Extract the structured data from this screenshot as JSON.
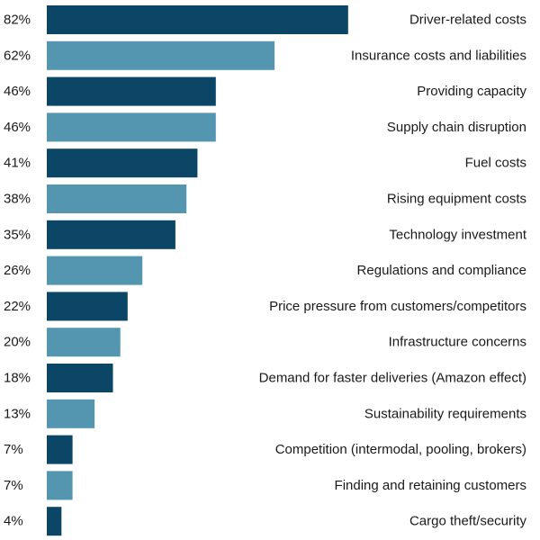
{
  "chart_data": {
    "type": "bar",
    "orientation": "horizontal",
    "title": "",
    "xlabel": "",
    "ylabel": "",
    "xlim": [
      0,
      100
    ],
    "categories": [
      "Driver-related costs",
      "Insurance costs and liabilities",
      "Providing capacity",
      "Supply chain disruption",
      "Fuel costs",
      "Rising equipment costs",
      "Technology investment",
      "Regulations and compliance",
      "Price pressure from customers/competitors",
      "Infrastructure concerns",
      "Demand for faster deliveries (Amazon effect)",
      "Sustainability requirements",
      "Competition (intermodal, pooling, brokers)",
      "Finding and retaining customers",
      "Cargo theft/security"
    ],
    "values": [
      82,
      62,
      46,
      46,
      41,
      38,
      35,
      26,
      22,
      20,
      18,
      13,
      7,
      7,
      4
    ],
    "value_labels": [
      "82%",
      "62%",
      "46%",
      "46%",
      "41%",
      "38%",
      "35%",
      "26%",
      "22%",
      "20%",
      "18%",
      "13%",
      "7%",
      "7%",
      "4%"
    ],
    "colors": {
      "dark": "#0b4666",
      "light": "#5495b0"
    }
  }
}
